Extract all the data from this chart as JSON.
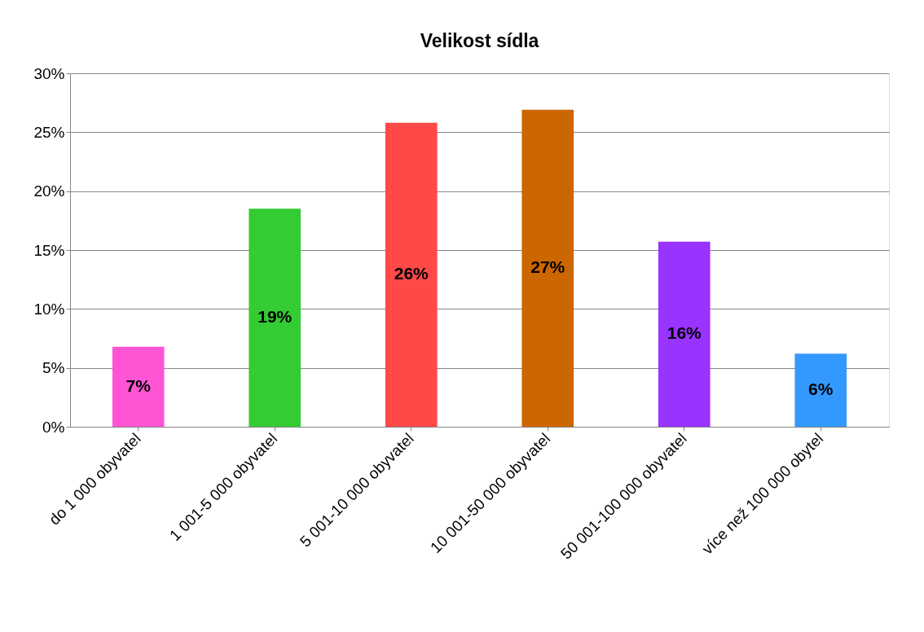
{
  "chart_data": {
    "type": "bar",
    "title": "Velikost sídla",
    "categories": [
      "do 1 000 obyvatel",
      "1 001-5 000 obyvatel",
      "5 001-10 000 obyvatel",
      "10 001-50 000 obyvatel",
      "50 001-100 000 obyvatel",
      "více než 100 000 obytel"
    ],
    "values": [
      6.8,
      18.5,
      25.8,
      26.9,
      15.7,
      6.2
    ],
    "value_labels": [
      "7%",
      "19%",
      "26%",
      "27%",
      "16%",
      "6%"
    ],
    "colors": [
      "#ff55d5",
      "#33cc33",
      "#ff4848",
      "#cc6600",
      "#9933ff",
      "#3399ff"
    ],
    "ylim": [
      0,
      30
    ],
    "yticks": [
      {
        "value": 0,
        "label": "0%"
      },
      {
        "value": 5,
        "label": "5%"
      },
      {
        "value": 10,
        "label": "10%"
      },
      {
        "value": 15,
        "label": "15%"
      },
      {
        "value": 20,
        "label": "20%"
      },
      {
        "value": 25,
        "label": "25%"
      },
      {
        "value": 30,
        "label": "30%"
      }
    ],
    "grid": "y"
  }
}
